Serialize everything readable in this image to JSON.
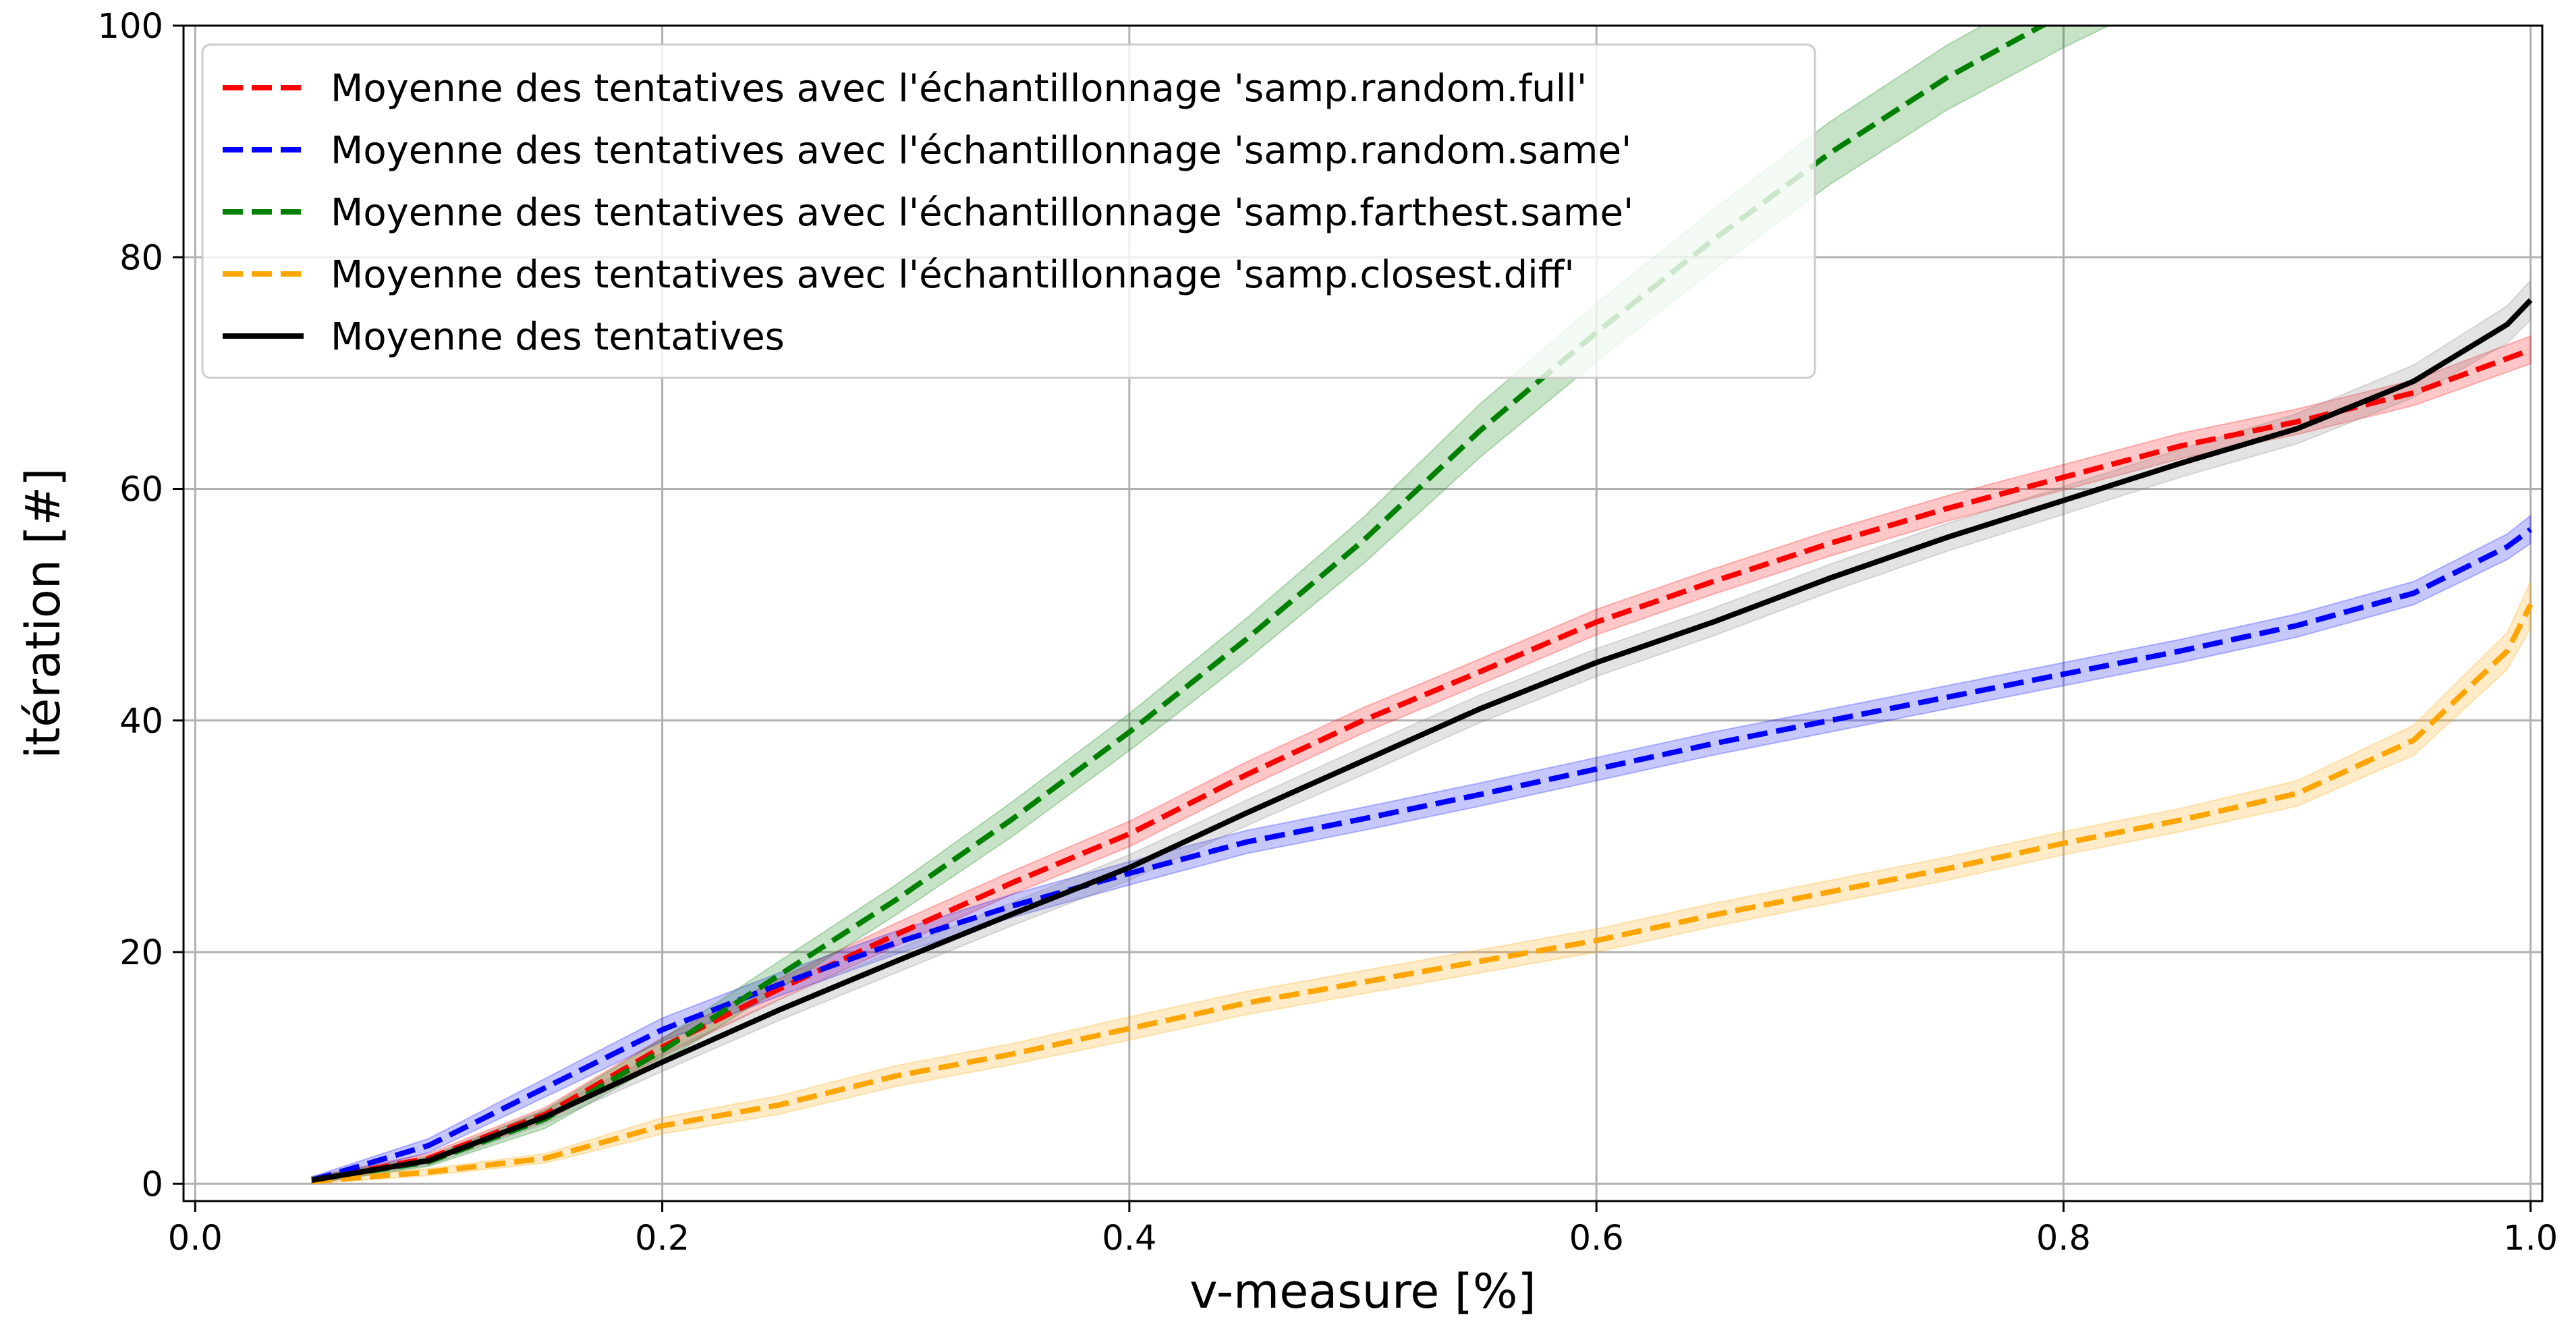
{
  "chart_data": {
    "type": "line",
    "title": "",
    "xlabel": "v-measure [%]",
    "ylabel": "itération [#]",
    "xlim": [
      0.0,
      1.0
    ],
    "ylim": [
      0,
      100
    ],
    "xticks": [
      0.0,
      0.2,
      0.4,
      0.6,
      0.8,
      1.0
    ],
    "xtick_labels": [
      "0.0",
      "0.2",
      "0.4",
      "0.6",
      "0.8",
      "1.0"
    ],
    "yticks": [
      0,
      20,
      40,
      60,
      80,
      100
    ],
    "ytick_labels": [
      "0",
      "20",
      "40",
      "60",
      "80",
      "100"
    ],
    "grid": true,
    "legend_position": "top-left",
    "series": [
      {
        "name": "Moyenne des tentatives avec l'échantillonnage 'samp.random.full'",
        "color": "#ff0000",
        "dashed": true,
        "band_color": "#ff0000",
        "x": [
          0.05,
          0.1,
          0.15,
          0.2,
          0.25,
          0.3,
          0.35,
          0.4,
          0.45,
          0.5,
          0.55,
          0.6,
          0.65,
          0.7,
          0.75,
          0.8,
          0.85,
          0.9,
          0.95,
          1.0
        ],
        "y": [
          0.3,
          2.2,
          6.0,
          11.8,
          16.8,
          21.5,
          26.0,
          30.2,
          35.3,
          40.0,
          44.2,
          48.5,
          52.0,
          55.3,
          58.3,
          61.0,
          63.7,
          65.8,
          68.3,
          72.0
        ],
        "err": [
          0.3,
          0.4,
          0.6,
          0.8,
          0.9,
          1.0,
          1.0,
          1.1,
          1.1,
          1.1,
          1.1,
          1.1,
          1.1,
          1.1,
          1.1,
          1.1,
          1.1,
          1.1,
          1.1,
          1.2
        ]
      },
      {
        "name": "Moyenne des tentatives avec l'échantillonnage 'samp.random.same'",
        "color": "#0000ff",
        "dashed": true,
        "band_color": "#0000ff",
        "x": [
          0.05,
          0.1,
          0.15,
          0.2,
          0.25,
          0.3,
          0.35,
          0.4,
          0.45,
          0.5,
          0.55,
          0.6,
          0.65,
          0.7,
          0.75,
          0.8,
          0.85,
          0.9,
          0.95,
          0.99,
          1.0
        ],
        "y": [
          0.3,
          3.3,
          8.3,
          13.3,
          17.2,
          20.8,
          24.0,
          26.8,
          29.5,
          31.5,
          33.6,
          35.8,
          38.0,
          40.0,
          42.0,
          44.0,
          46.0,
          48.2,
          51.0,
          55.0,
          56.5
        ],
        "err": [
          0.3,
          0.6,
          0.8,
          1.0,
          1.0,
          1.0,
          1.0,
          1.0,
          1.0,
          1.0,
          1.0,
          1.0,
          1.0,
          1.0,
          1.0,
          1.0,
          1.0,
          1.0,
          1.0,
          1.1,
          1.2
        ]
      },
      {
        "name": "Moyenne des tentatives avec l'échantillonnage 'samp.farthest.same'",
        "color": "#008000",
        "dashed": true,
        "band_color": "#008000",
        "x": [
          0.05,
          0.1,
          0.15,
          0.2,
          0.25,
          0.3,
          0.35,
          0.4,
          0.45,
          0.5,
          0.55,
          0.6,
          0.65,
          0.7,
          0.75,
          0.8,
          0.85
        ],
        "y": [
          0.3,
          1.9,
          5.6,
          11.5,
          18.0,
          24.5,
          31.5,
          39.0,
          47.0,
          55.5,
          65.0,
          73.5,
          81.5,
          89.0,
          95.5,
          101.0,
          106.0
        ],
        "err": [
          0.3,
          0.4,
          0.8,
          1.0,
          1.2,
          1.3,
          1.5,
          1.6,
          1.8,
          2.0,
          2.3,
          2.5,
          2.6,
          2.7,
          2.8,
          2.9,
          3.0
        ]
      },
      {
        "name": "Moyenne des tentatives avec l'échantillonnage 'samp.closest.diff'",
        "color": "#ffa500",
        "dashed": true,
        "band_color": "#ffa500",
        "x": [
          0.05,
          0.1,
          0.15,
          0.2,
          0.25,
          0.3,
          0.35,
          0.4,
          0.45,
          0.5,
          0.55,
          0.6,
          0.65,
          0.7,
          0.75,
          0.8,
          0.85,
          0.9,
          0.95,
          0.99,
          1.0
        ],
        "y": [
          0.2,
          1.0,
          2.2,
          5.0,
          6.8,
          9.3,
          11.2,
          13.4,
          15.6,
          17.4,
          19.2,
          21.0,
          23.2,
          25.2,
          27.2,
          29.4,
          31.4,
          33.7,
          38.3,
          46.0,
          50.0
        ],
        "err": [
          0.2,
          0.3,
          0.4,
          0.7,
          0.8,
          0.9,
          0.9,
          1.0,
          1.0,
          1.0,
          1.0,
          1.0,
          1.0,
          1.0,
          1.0,
          1.0,
          1.0,
          1.1,
          1.3,
          1.6,
          2.0
        ]
      },
      {
        "name": "Moyenne des tentatives",
        "color": "#000000",
        "dashed": false,
        "band_color": "#808080",
        "x": [
          0.05,
          0.1,
          0.15,
          0.2,
          0.25,
          0.3,
          0.35,
          0.4,
          0.45,
          0.5,
          0.55,
          0.6,
          0.65,
          0.7,
          0.75,
          0.8,
          0.85,
          0.9,
          0.95,
          0.99,
          1.0
        ],
        "y": [
          0.3,
          2.0,
          5.8,
          10.5,
          15.0,
          19.2,
          23.3,
          27.3,
          32.0,
          36.5,
          41.0,
          45.0,
          48.5,
          52.3,
          55.8,
          59.0,
          62.2,
          65.2,
          69.3,
          74.2,
          76.3
        ],
        "err": [
          0.3,
          0.4,
          0.6,
          0.8,
          0.9,
          1.0,
          1.0,
          1.1,
          1.1,
          1.2,
          1.2,
          1.2,
          1.2,
          1.2,
          1.2,
          1.2,
          1.2,
          1.3,
          1.4,
          1.6,
          1.7
        ]
      }
    ]
  }
}
